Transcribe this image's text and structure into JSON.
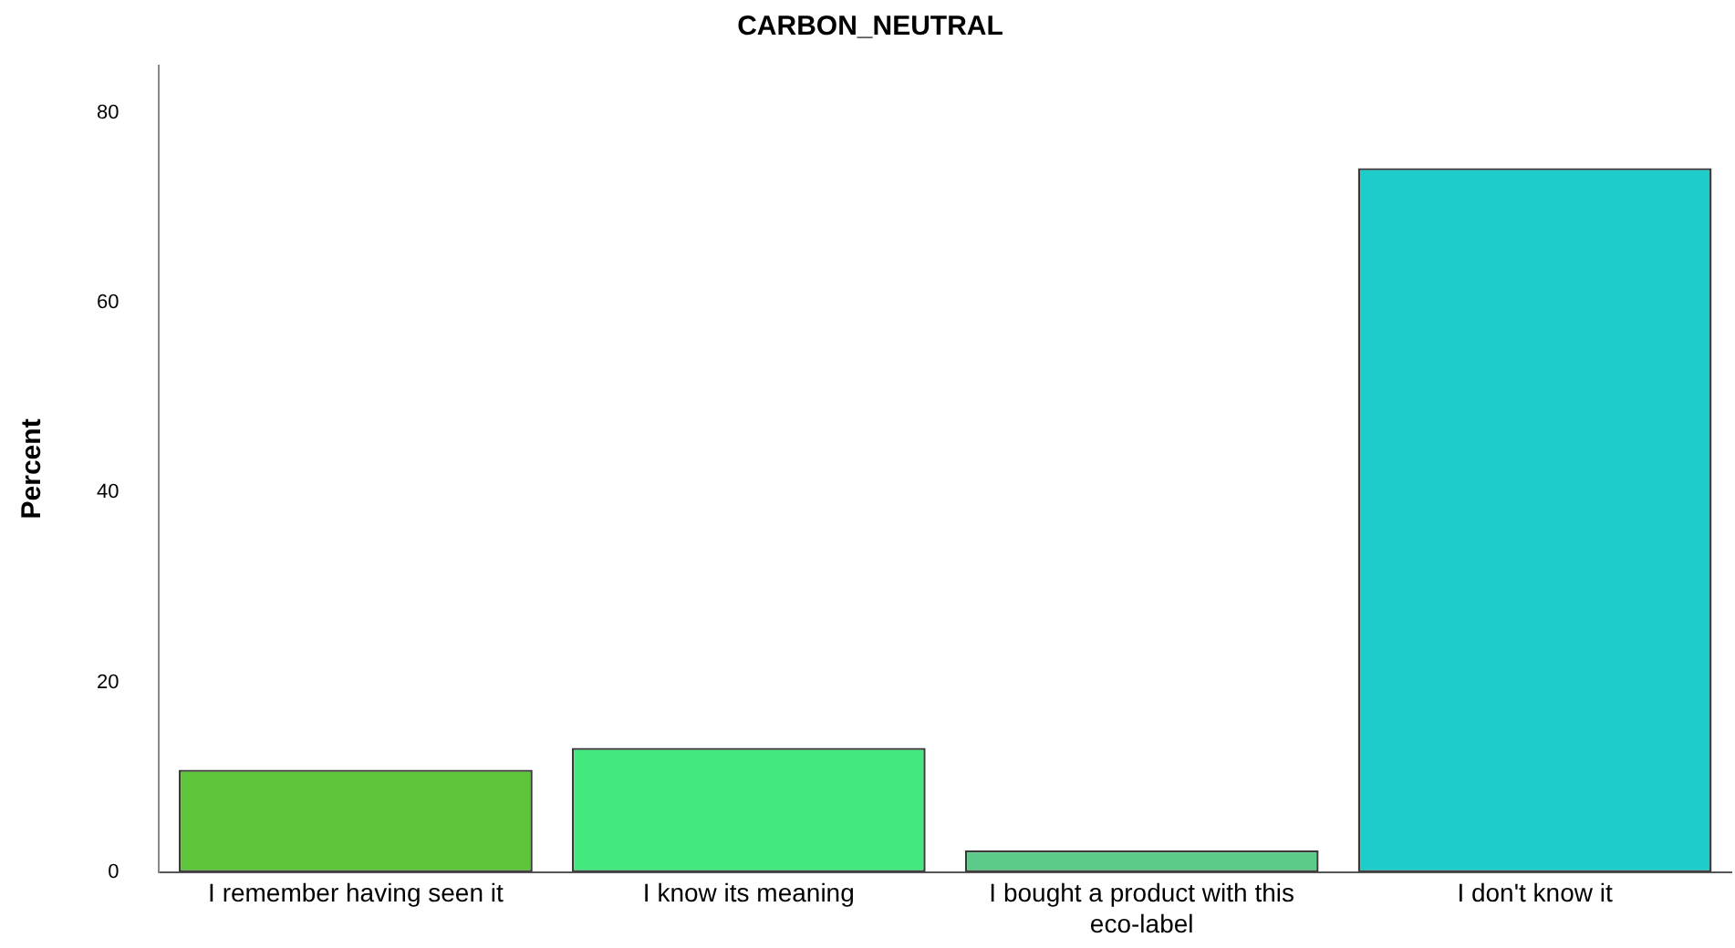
{
  "chart_data": {
    "type": "bar",
    "title": "CARBON_NEUTRAL",
    "ylabel": "Percent",
    "categories": [
      "I remember having seen it",
      "I know its meaning",
      "I bought a product with this eco-label",
      "I don't know it"
    ],
    "values": [
      10.8,
      13.1,
      2.3,
      74.2
    ],
    "colors": [
      "#5ec43a",
      "#43e97e",
      "#5ccb8a",
      "#1ccdcc"
    ],
    "ylim": [
      0,
      85
    ],
    "yticks": [
      0,
      20,
      40,
      60,
      80
    ],
    "grid": false,
    "legend": false
  }
}
